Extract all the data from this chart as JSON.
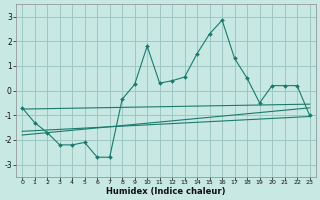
{
  "xlabel": "Humidex (Indice chaleur)",
  "bg_color": "#c8e8e4",
  "grid_color": "#9ec8c4",
  "line_color": "#1a7a6e",
  "xlim": [
    -0.5,
    23.5
  ],
  "ylim": [
    -3.5,
    3.5
  ],
  "yticks": [
    -3,
    -2,
    -1,
    0,
    1,
    2,
    3
  ],
  "xticks": [
    0,
    1,
    2,
    3,
    4,
    5,
    6,
    7,
    8,
    9,
    10,
    11,
    12,
    13,
    14,
    15,
    16,
    17,
    18,
    19,
    20,
    21,
    22,
    23
  ],
  "main_x": [
    0,
    1,
    2,
    3,
    4,
    5,
    6,
    7,
    8,
    9,
    10,
    11,
    12,
    13,
    14,
    15,
    16,
    17,
    18,
    19,
    20,
    21,
    22,
    23
  ],
  "main_y": [
    -0.7,
    -1.3,
    -1.7,
    -2.2,
    -2.2,
    -2.1,
    -2.7,
    -2.7,
    -0.35,
    0.25,
    1.8,
    0.3,
    0.4,
    0.55,
    1.5,
    2.3,
    2.85,
    1.3,
    0.5,
    -0.5,
    0.2,
    0.2,
    0.2,
    -1.0
  ],
  "line2_x": [
    0,
    23
  ],
  "line2_y": [
    -0.75,
    -0.55
  ],
  "line3_x": [
    0,
    23
  ],
  "line3_y": [
    -1.65,
    -1.05
  ],
  "line4_x": [
    0,
    23
  ],
  "line4_y": [
    -1.8,
    -0.7
  ]
}
